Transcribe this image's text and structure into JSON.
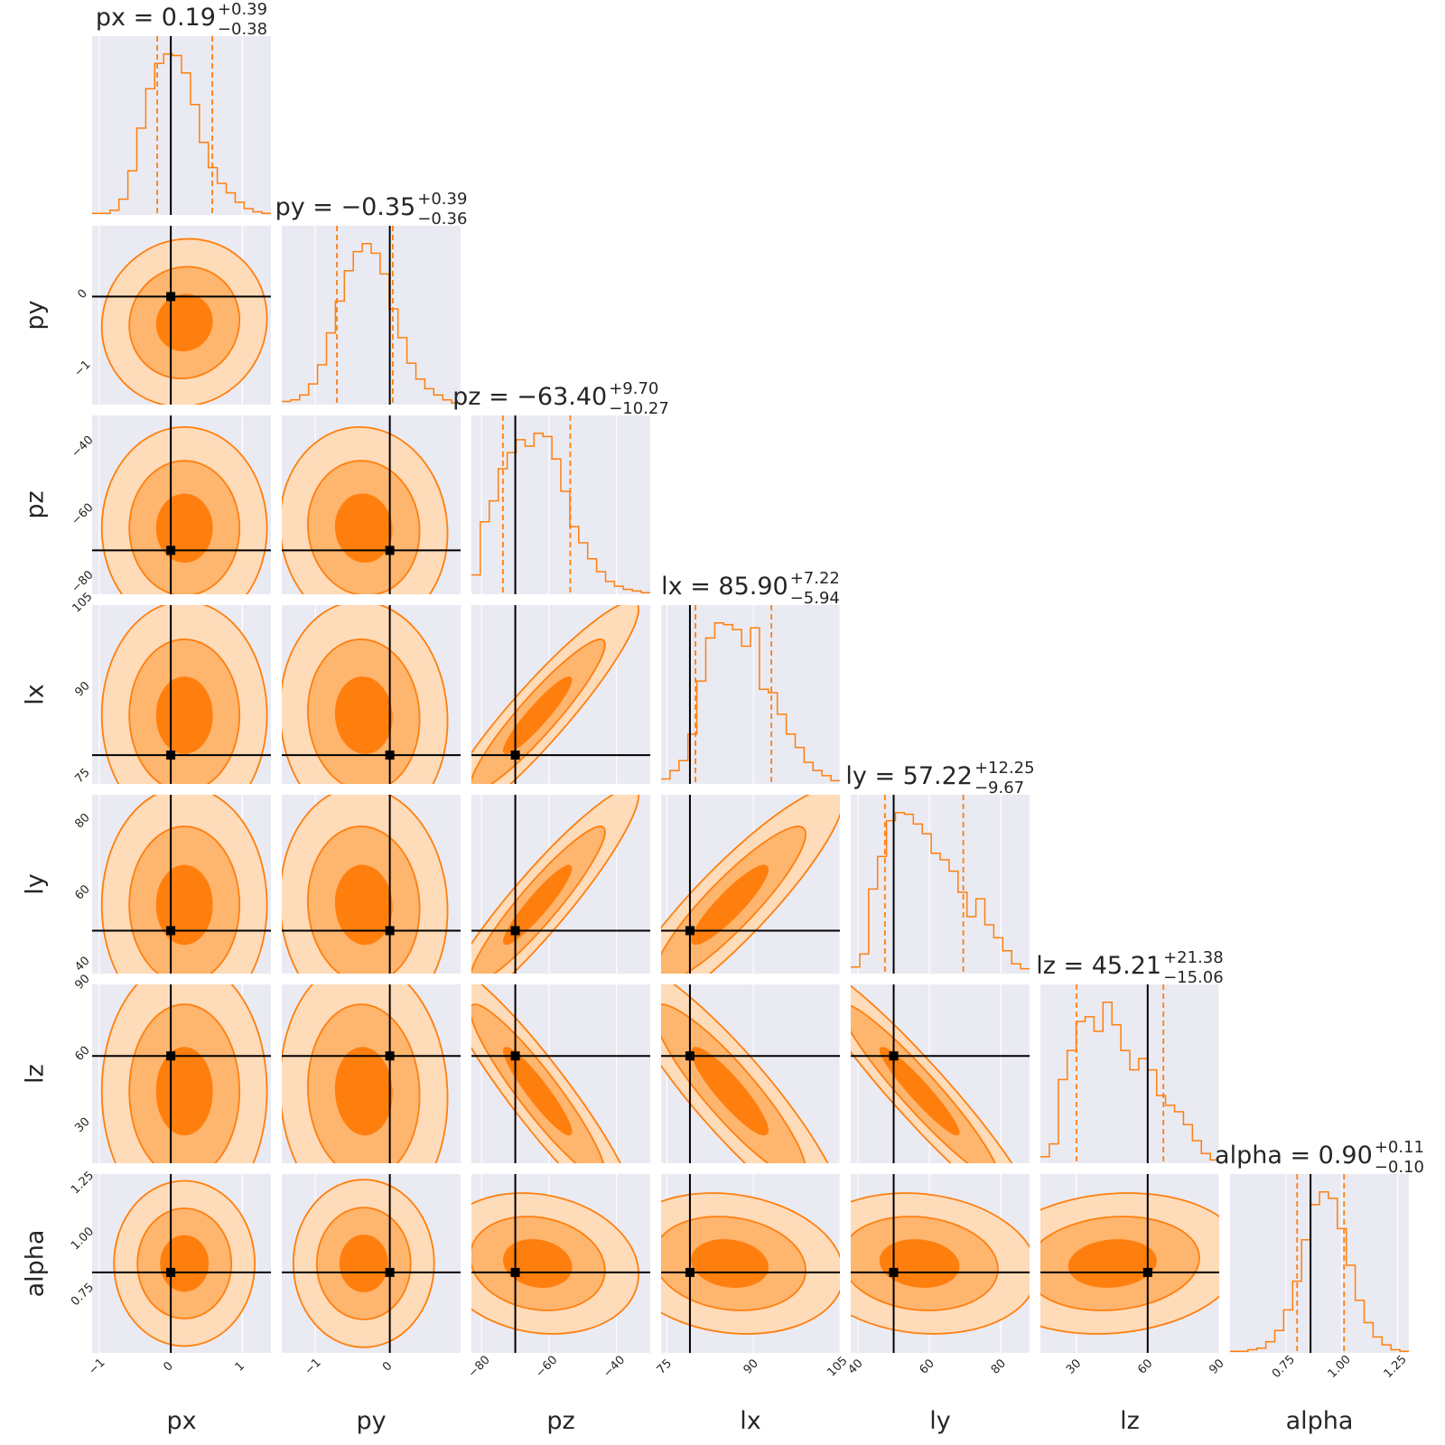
{
  "chart_data": {
    "type": "corner",
    "colors": {
      "panel_bg": "#eaeaf2",
      "grid": "#ffffff",
      "series": "#ff7f0e",
      "fill_1sigma": "#ff7f0e",
      "fill_2sigma": "#feb56e",
      "fill_3sigma": "#fedbb9",
      "truth": "#000000",
      "text": "#262626"
    },
    "parameters": [
      {
        "name": "px",
        "range": [
          -1.1,
          1.4
        ],
        "ticks": [
          -1,
          0,
          1
        ],
        "tick_labels": [
          "−1",
          "0",
          "1"
        ],
        "title_main": "px = 0.19",
        "title_sup": "+0.39",
        "title_sub": "−0.38",
        "median": 0.19,
        "lower": -0.19,
        "upper": 0.58,
        "truth": 0.0,
        "hist": [
          1,
          1,
          3,
          10,
          28,
          55,
          80,
          96,
          102,
          101,
          90,
          70,
          46,
          30,
          20,
          14,
          8,
          4,
          2,
          1
        ]
      },
      {
        "name": "py",
        "range": [
          -1.45,
          0.95
        ],
        "ticks": [
          -1,
          0
        ],
        "tick_labels": [
          "−1",
          "0"
        ],
        "title_main": "py = −0.35",
        "title_sup": "+0.39",
        "title_sub": "−0.36",
        "median": -0.35,
        "lower": -0.71,
        "upper": 0.04,
        "truth": 0.0,
        "hist": [
          2,
          3,
          6,
          13,
          25,
          45,
          65,
          84,
          96,
          101,
          95,
          82,
          60,
          42,
          26,
          16,
          10,
          6,
          3,
          1
        ]
      },
      {
        "name": "pz",
        "range": [
          -83,
          -30
        ],
        "ticks": [
          -80,
          -60,
          -40
        ],
        "tick_labels": [
          "−80",
          "−60",
          "−40"
        ],
        "title_main": "pz = −63.40",
        "title_sup": "+9.70",
        "title_sub": "−10.27",
        "median": -63.4,
        "lower": -73.67,
        "upper": -53.7,
        "truth": -70.0,
        "hist": [
          12,
          45,
          58,
          78,
          88,
          96,
          92,
          100,
          98,
          84,
          64,
          42,
          32,
          22,
          14,
          8,
          5,
          3,
          2,
          1
        ]
      },
      {
        "name": "lx",
        "range": [
          74,
          105
        ],
        "ticks": [
          75,
          90,
          105
        ],
        "tick_labels": [
          "75",
          "90",
          "105"
        ],
        "title_main": "lx = 85.90",
        "title_sup": "+7.22",
        "title_sub": "−5.94",
        "median": 85.9,
        "lower": 79.96,
        "upper": 93.12,
        "truth": 79.0,
        "hist": [
          3,
          8,
          14,
          30,
          62,
          88,
          97,
          96,
          93,
          83,
          94,
          57,
          55,
          42,
          30,
          22,
          13,
          8,
          5,
          2
        ]
      },
      {
        "name": "ly",
        "range": [
          38,
          88
        ],
        "ticks": [
          40,
          60,
          80
        ],
        "tick_labels": [
          "40",
          "60",
          "80"
        ],
        "title_main": "ly = 57.22",
        "title_sup": "+12.25",
        "title_sub": "−9.67",
        "median": 57.22,
        "lower": 47.55,
        "upper": 69.47,
        "truth": 50.0,
        "hist": [
          4,
          12,
          52,
          72,
          94,
          99,
          98,
          92,
          86,
          74,
          70,
          63,
          50,
          35,
          46,
          30,
          22,
          14,
          6,
          3
        ]
      },
      {
        "name": "lz",
        "range": [
          15,
          90
        ],
        "ticks": [
          30,
          60,
          90
        ],
        "tick_labels": [
          "30",
          "60",
          "90"
        ],
        "title_main": "lz = 45.21",
        "title_sup": "+21.38",
        "title_sub": "−15.06",
        "median": 45.21,
        "lower": 30.15,
        "upper": 66.59,
        "truth": 60.0,
        "hist": [
          4,
          12,
          52,
          70,
          88,
          91,
          82,
          100,
          86,
          70,
          58,
          65,
          58,
          42,
          36,
          32,
          24,
          14,
          6,
          2
        ]
      },
      {
        "name": "alpha",
        "range": [
          0.5,
          1.3
        ],
        "ticks": [
          0.75,
          1.0,
          1.25
        ],
        "tick_labels": [
          "0.75",
          "1.00",
          "1.25"
        ],
        "title_main": "alpha = 0.90",
        "title_sup": "+0.11",
        "title_sub": "−0.10",
        "median": 0.9,
        "lower": 0.8,
        "upper": 1.01,
        "truth": 0.86,
        "hist": [
          1,
          1,
          2,
          3,
          7,
          14,
          27,
          45,
          71,
          93,
          101,
          97,
          78,
          55,
          33,
          19,
          10,
          5,
          2,
          1
        ]
      }
    ],
    "correlations": [
      [
        0
      ],
      [
        0.05,
        0
      ],
      [
        0.0,
        -0.05,
        0
      ],
      [
        0.0,
        -0.05,
        0.93,
        0
      ],
      [
        0.0,
        -0.05,
        0.93,
        0.9,
        0
      ],
      [
        0.0,
        -0.05,
        -0.93,
        -0.9,
        -0.95,
        0
      ],
      [
        0.0,
        0.0,
        -0.15,
        -0.15,
        -0.12,
        0.12,
        0
      ]
    ],
    "contour_levels": [
      0.39,
      0.86,
      0.99
    ]
  }
}
